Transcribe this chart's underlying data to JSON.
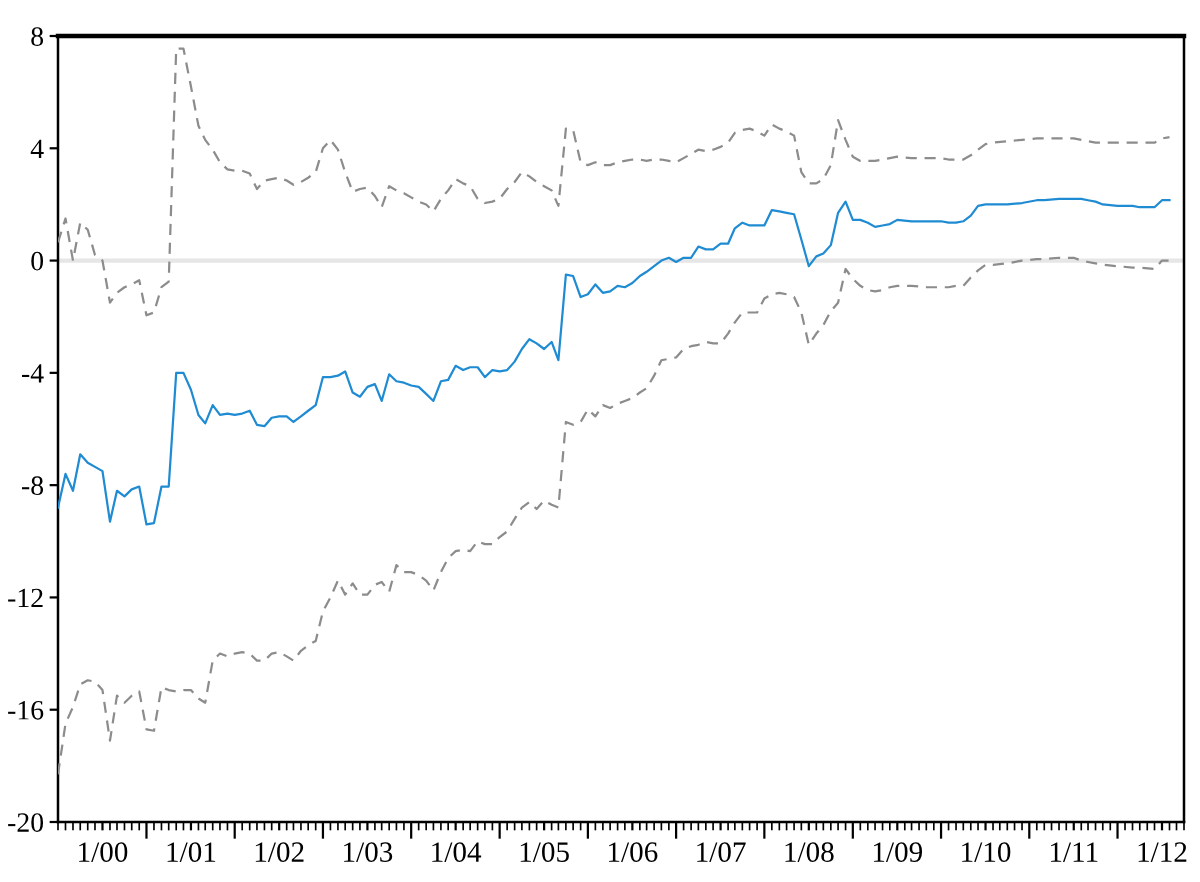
{
  "chart_data": {
    "type": "line",
    "x": [
      "1999-07",
      "1999-08",
      "1999-09",
      "1999-10",
      "1999-11",
      "1999-12",
      "2000-01",
      "2000-02",
      "2000-03",
      "2000-04",
      "2000-05",
      "2000-06",
      "2000-07",
      "2000-08",
      "2000-09",
      "2000-10",
      "2000-11",
      "2000-12",
      "2001-01",
      "2001-02",
      "2001-03",
      "2001-04",
      "2001-05",
      "2001-06",
      "2001-07",
      "2001-08",
      "2001-09",
      "2001-10",
      "2001-11",
      "2001-12",
      "2002-01",
      "2002-02",
      "2002-03",
      "2002-04",
      "2002-05",
      "2002-06",
      "2002-07",
      "2002-08",
      "2002-09",
      "2002-10",
      "2002-11",
      "2002-12",
      "2003-01",
      "2003-02",
      "2003-03",
      "2003-04",
      "2003-05",
      "2003-06",
      "2003-07",
      "2003-08",
      "2003-09",
      "2003-10",
      "2003-11",
      "2003-12",
      "2004-01",
      "2004-02",
      "2004-03",
      "2004-04",
      "2004-05",
      "2004-06",
      "2004-07",
      "2004-08",
      "2004-09",
      "2004-10",
      "2004-11",
      "2004-12",
      "2005-01",
      "2005-02",
      "2005-03",
      "2005-04",
      "2005-05",
      "2005-06",
      "2005-07",
      "2005-08",
      "2005-09",
      "2005-10",
      "2005-11",
      "2005-12",
      "2006-01",
      "2006-02",
      "2006-03",
      "2006-04",
      "2006-05",
      "2006-06",
      "2006-07",
      "2006-08",
      "2006-09",
      "2006-10",
      "2006-11",
      "2006-12",
      "2007-01",
      "2007-02",
      "2007-03",
      "2007-04",
      "2007-05",
      "2007-06",
      "2007-07",
      "2007-08",
      "2007-09",
      "2007-10",
      "2007-11",
      "2007-12",
      "2008-01",
      "2008-02",
      "2008-03",
      "2008-04",
      "2008-05",
      "2008-06",
      "2008-07",
      "2008-08",
      "2008-09",
      "2008-10",
      "2008-11",
      "2008-12",
      "2009-01",
      "2009-03",
      "2009-05",
      "2009-07",
      "2009-08",
      "2009-09",
      "2009-10",
      "2009-11",
      "2009-12",
      "2010-01",
      "2010-02",
      "2010-04",
      "2010-06",
      "2010-08",
      "2010-09",
      "2010-11",
      "2010-12",
      "2011-01",
      "2011-02",
      "2011-03",
      "2011-04",
      "2011-05",
      "2011-07",
      "2011-09",
      "2011-10",
      "2011-12",
      "2012-01",
      "2012-02"
    ],
    "series": [
      {
        "color": "#1f8bd2",
        "values": [
          -8.8,
          -7.6,
          -8.2,
          -6.9,
          -7.2,
          -7.35,
          -7.5,
          -9.3,
          -8.2,
          -8.4,
          -8.15,
          -8.05,
          -9.4,
          -9.35,
          -8.05,
          -8.05,
          -4.0,
          -4.0,
          -4.6,
          -5.5,
          -5.8,
          -5.15,
          -5.5,
          -5.45,
          -5.5,
          -5.45,
          -5.35,
          -5.85,
          -5.9,
          -5.6,
          -5.55,
          -5.55,
          -5.75,
          -5.55,
          -5.35,
          -5.15,
          -4.15,
          -4.15,
          -4.1,
          -3.95,
          -4.7,
          -4.85,
          -4.5,
          -4.4,
          -5.0,
          -4.05,
          -4.3,
          -4.35,
          -4.45,
          -4.5,
          -4.75,
          -5.0,
          -4.3,
          -4.25,
          -3.75,
          -3.9,
          -3.8,
          -3.8,
          -4.15,
          -3.9,
          -3.95,
          -3.9,
          -3.6,
          -3.15,
          -2.8,
          -2.95,
          -3.15,
          -2.9,
          -3.55,
          -0.5,
          -0.55,
          -1.3,
          -1.2,
          -0.85,
          -1.15,
          -1.1,
          -0.9,
          -0.95,
          -0.8,
          -0.55,
          -0.4,
          -0.2,
          0.0,
          0.1,
          -0.05,
          0.1,
          0.1,
          0.5,
          0.4,
          0.4,
          0.6,
          0.6,
          1.15,
          1.35,
          1.25,
          1.25,
          1.25,
          1.8,
          1.75,
          1.7,
          1.65,
          0.75,
          -0.2,
          0.15,
          0.25,
          0.55,
          1.7,
          2.1,
          1.45,
          1.45,
          1.35,
          1.2,
          1.25,
          1.3,
          1.45,
          1.4,
          1.4,
          1.4,
          1.35,
          1.35,
          1.4,
          1.6,
          1.95,
          2.0,
          2.0,
          2.0,
          2.05,
          2.15,
          2.15,
          2.2,
          2.2,
          2.2,
          2.2,
          2.15,
          2.1,
          2.0,
          1.95,
          1.95,
          1.9,
          1.9,
          2.15,
          2.15
        ]
      },
      {
        "color": "#8c8c8c",
        "line_style": "dashed",
        "values": [
          0.65,
          1.5,
          0.0,
          1.35,
          1.1,
          0.2,
          0.0,
          -1.5,
          -1.15,
          -0.95,
          -0.85,
          -0.7,
          -1.95,
          -1.85,
          -0.95,
          -0.75,
          7.55,
          7.55,
          6.2,
          4.8,
          4.3,
          3.95,
          3.5,
          3.25,
          3.2,
          3.2,
          3.1,
          2.55,
          2.85,
          2.9,
          2.95,
          2.85,
          2.7,
          2.8,
          2.95,
          3.15,
          4.0,
          4.3,
          3.95,
          3.15,
          2.45,
          2.55,
          2.6,
          2.3,
          1.9,
          2.65,
          2.5,
          2.4,
          2.25,
          2.1,
          2.0,
          1.75,
          2.2,
          2.5,
          2.9,
          2.75,
          2.65,
          2.2,
          2.05,
          2.1,
          2.2,
          2.55,
          2.8,
          3.15,
          3.0,
          2.8,
          2.65,
          2.5,
          1.95,
          4.7,
          4.65,
          3.5,
          3.4,
          3.5,
          3.4,
          3.4,
          3.5,
          3.55,
          3.6,
          3.6,
          3.55,
          3.6,
          3.6,
          3.55,
          3.5,
          3.65,
          3.8,
          3.95,
          3.9,
          3.95,
          4.05,
          4.2,
          4.55,
          4.65,
          4.7,
          4.6,
          4.45,
          4.85,
          4.7,
          4.6,
          4.45,
          3.15,
          2.75,
          2.75,
          2.9,
          3.4,
          5.0,
          4.3,
          3.7,
          3.55,
          3.55,
          3.55,
          3.6,
          3.65,
          3.7,
          3.65,
          3.65,
          3.65,
          3.6,
          3.6,
          3.6,
          3.75,
          3.95,
          4.15,
          4.2,
          4.25,
          4.3,
          4.35,
          4.35,
          4.35,
          4.35,
          4.35,
          4.3,
          4.25,
          4.2,
          4.2,
          4.2,
          4.2,
          4.2,
          4.2,
          4.35,
          4.4
        ]
      },
      {
        "color": "#8c8c8c",
        "line_style": "dashed",
        "values": [
          -18.3,
          -16.5,
          -15.9,
          -15.1,
          -14.95,
          -15.0,
          -15.3,
          -17.1,
          -15.5,
          -15.75,
          -15.5,
          -15.35,
          -16.7,
          -16.75,
          -15.2,
          -15.3,
          -15.35,
          -15.3,
          -15.3,
          -15.6,
          -15.75,
          -14.25,
          -14.0,
          -14.1,
          -14.0,
          -13.95,
          -14.0,
          -14.25,
          -14.25,
          -14.0,
          -13.95,
          -14.1,
          -14.25,
          -13.9,
          -13.7,
          -13.55,
          -12.5,
          -12.0,
          -11.4,
          -11.9,
          -11.5,
          -11.9,
          -11.9,
          -11.55,
          -11.45,
          -11.8,
          -10.85,
          -11.1,
          -11.1,
          -11.2,
          -11.4,
          -11.75,
          -11.1,
          -10.6,
          -10.35,
          -10.3,
          -10.35,
          -10.0,
          -10.1,
          -10.1,
          -9.85,
          -9.65,
          -9.2,
          -8.8,
          -8.6,
          -8.85,
          -8.55,
          -8.7,
          -8.8,
          -5.75,
          -5.85,
          -5.75,
          -5.3,
          -5.55,
          -5.15,
          -5.25,
          -5.1,
          -5.0,
          -4.9,
          -4.7,
          -4.55,
          -4.1,
          -3.55,
          -3.5,
          -3.45,
          -3.15,
          -3.05,
          -3.0,
          -2.9,
          -2.95,
          -2.95,
          -2.6,
          -2.2,
          -1.85,
          -1.85,
          -1.85,
          -1.35,
          -1.2,
          -1.15,
          -1.2,
          -1.3,
          -1.85,
          -3.0,
          -2.6,
          -2.3,
          -1.8,
          -1.5,
          -0.3,
          -0.65,
          -0.9,
          -1.05,
          -1.1,
          -1.05,
          -0.95,
          -0.9,
          -0.9,
          -0.95,
          -0.95,
          -0.95,
          -0.9,
          -0.9,
          -0.6,
          -0.35,
          -0.15,
          -0.15,
          -0.1,
          0.0,
          0.05,
          0.05,
          0.1,
          0.1,
          0.1,
          0.0,
          -0.05,
          -0.1,
          -0.15,
          -0.2,
          -0.25,
          -0.25,
          -0.3,
          0.0,
          0.0
        ]
      }
    ],
    "xlim": [
      "1999-07",
      "2012-04"
    ],
    "xticks": [
      {
        "value": "2000-01",
        "label": "1/00"
      },
      {
        "value": "2000-07",
        "label": null
      },
      {
        "value": "2001-01",
        "label": "1/01"
      },
      {
        "value": "2001-07",
        "label": null
      },
      {
        "value": "2002-01",
        "label": "1/02"
      },
      {
        "value": "2002-07",
        "label": null
      },
      {
        "value": "2003-01",
        "label": "1/03"
      },
      {
        "value": "2003-07",
        "label": null
      },
      {
        "value": "2004-01",
        "label": "1/04"
      },
      {
        "value": "2004-07",
        "label": null
      },
      {
        "value": "2005-01",
        "label": "1/05"
      },
      {
        "value": "2005-07",
        "label": null
      },
      {
        "value": "2006-01",
        "label": "1/06"
      },
      {
        "value": "2006-07",
        "label": null
      },
      {
        "value": "2007-01",
        "label": "1/07"
      },
      {
        "value": "2007-07",
        "label": null
      },
      {
        "value": "2008-01",
        "label": "1/08"
      },
      {
        "value": "2008-07",
        "label": null
      },
      {
        "value": "2009-01",
        "label": "1/09"
      },
      {
        "value": "2009-07",
        "label": null
      },
      {
        "value": "2010-01",
        "label": "1/10"
      },
      {
        "value": "2010-07",
        "label": null
      },
      {
        "value": "2011-01",
        "label": "1/11"
      },
      {
        "value": "2011-07",
        "label": null
      },
      {
        "value": "2012-01",
        "label": "1/12"
      }
    ],
    "ylim": [
      -20,
      8
    ],
    "yticks": [
      -20,
      -16,
      -12,
      -8,
      -4,
      0,
      4,
      8
    ],
    "ref_lines": [
      {
        "axis": "y",
        "value": 0,
        "color": "#e6e6e6"
      }
    ]
  }
}
